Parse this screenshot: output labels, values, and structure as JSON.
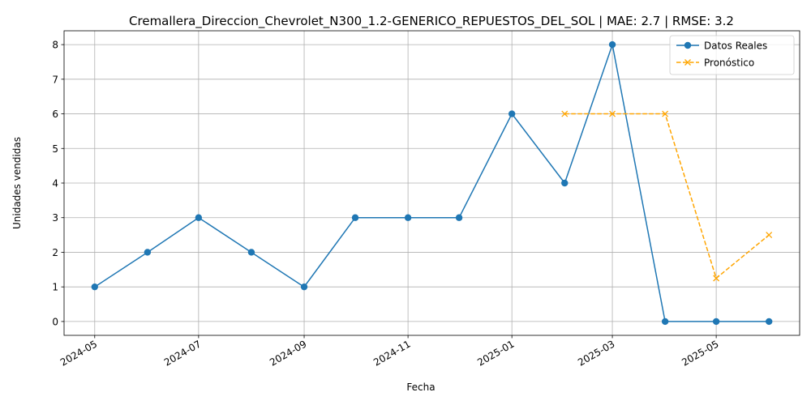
{
  "chart_data": {
    "type": "line",
    "title": "Cremallera_Direccion_Chevrolet_N300_1.2-GENERICO_REPUESTOS_DEL_SOL | MAE: 2.7 | RMSE: 3.2",
    "xlabel": "Fecha",
    "ylabel": "Unidades vendidas",
    "xlim": [
      "2024-04-13",
      "2025-06-19"
    ],
    "ylim": [
      -0.4,
      8.4
    ],
    "x_ticks": [
      "2024-05",
      "2024-07",
      "2024-09",
      "2024-11",
      "2025-01",
      "2025-03",
      "2025-05"
    ],
    "x_tick_dates": [
      "2024-05-01",
      "2024-07-01",
      "2024-09-01",
      "2024-11-01",
      "2025-01-01",
      "2025-03-01",
      "2025-05-01"
    ],
    "y_ticks": [
      0,
      1,
      2,
      3,
      4,
      5,
      6,
      7,
      8
    ],
    "grid": true,
    "legend_position": "top-right",
    "series": [
      {
        "name": "Datos Reales",
        "color": "#1f77b4",
        "line_style": "solid",
        "marker": "circle",
        "x": [
          "2024-05-01",
          "2024-06-01",
          "2024-07-01",
          "2024-08-01",
          "2024-09-01",
          "2024-10-01",
          "2024-11-01",
          "2024-12-01",
          "2025-01-01",
          "2025-02-01",
          "2025-03-01",
          "2025-04-01",
          "2025-05-01",
          "2025-06-01"
        ],
        "values": [
          1,
          2,
          3,
          2,
          1,
          3,
          3,
          3,
          6,
          4,
          8,
          0,
          0,
          0
        ]
      },
      {
        "name": "Pronóstico",
        "color": "#ffa500",
        "line_style": "dashed",
        "marker": "x",
        "x": [
          "2025-02-01",
          "2025-03-01",
          "2025-04-01",
          "2025-05-01",
          "2025-06-01"
        ],
        "values": [
          6.0,
          6.0,
          6.0,
          1.25,
          2.5
        ]
      }
    ]
  }
}
